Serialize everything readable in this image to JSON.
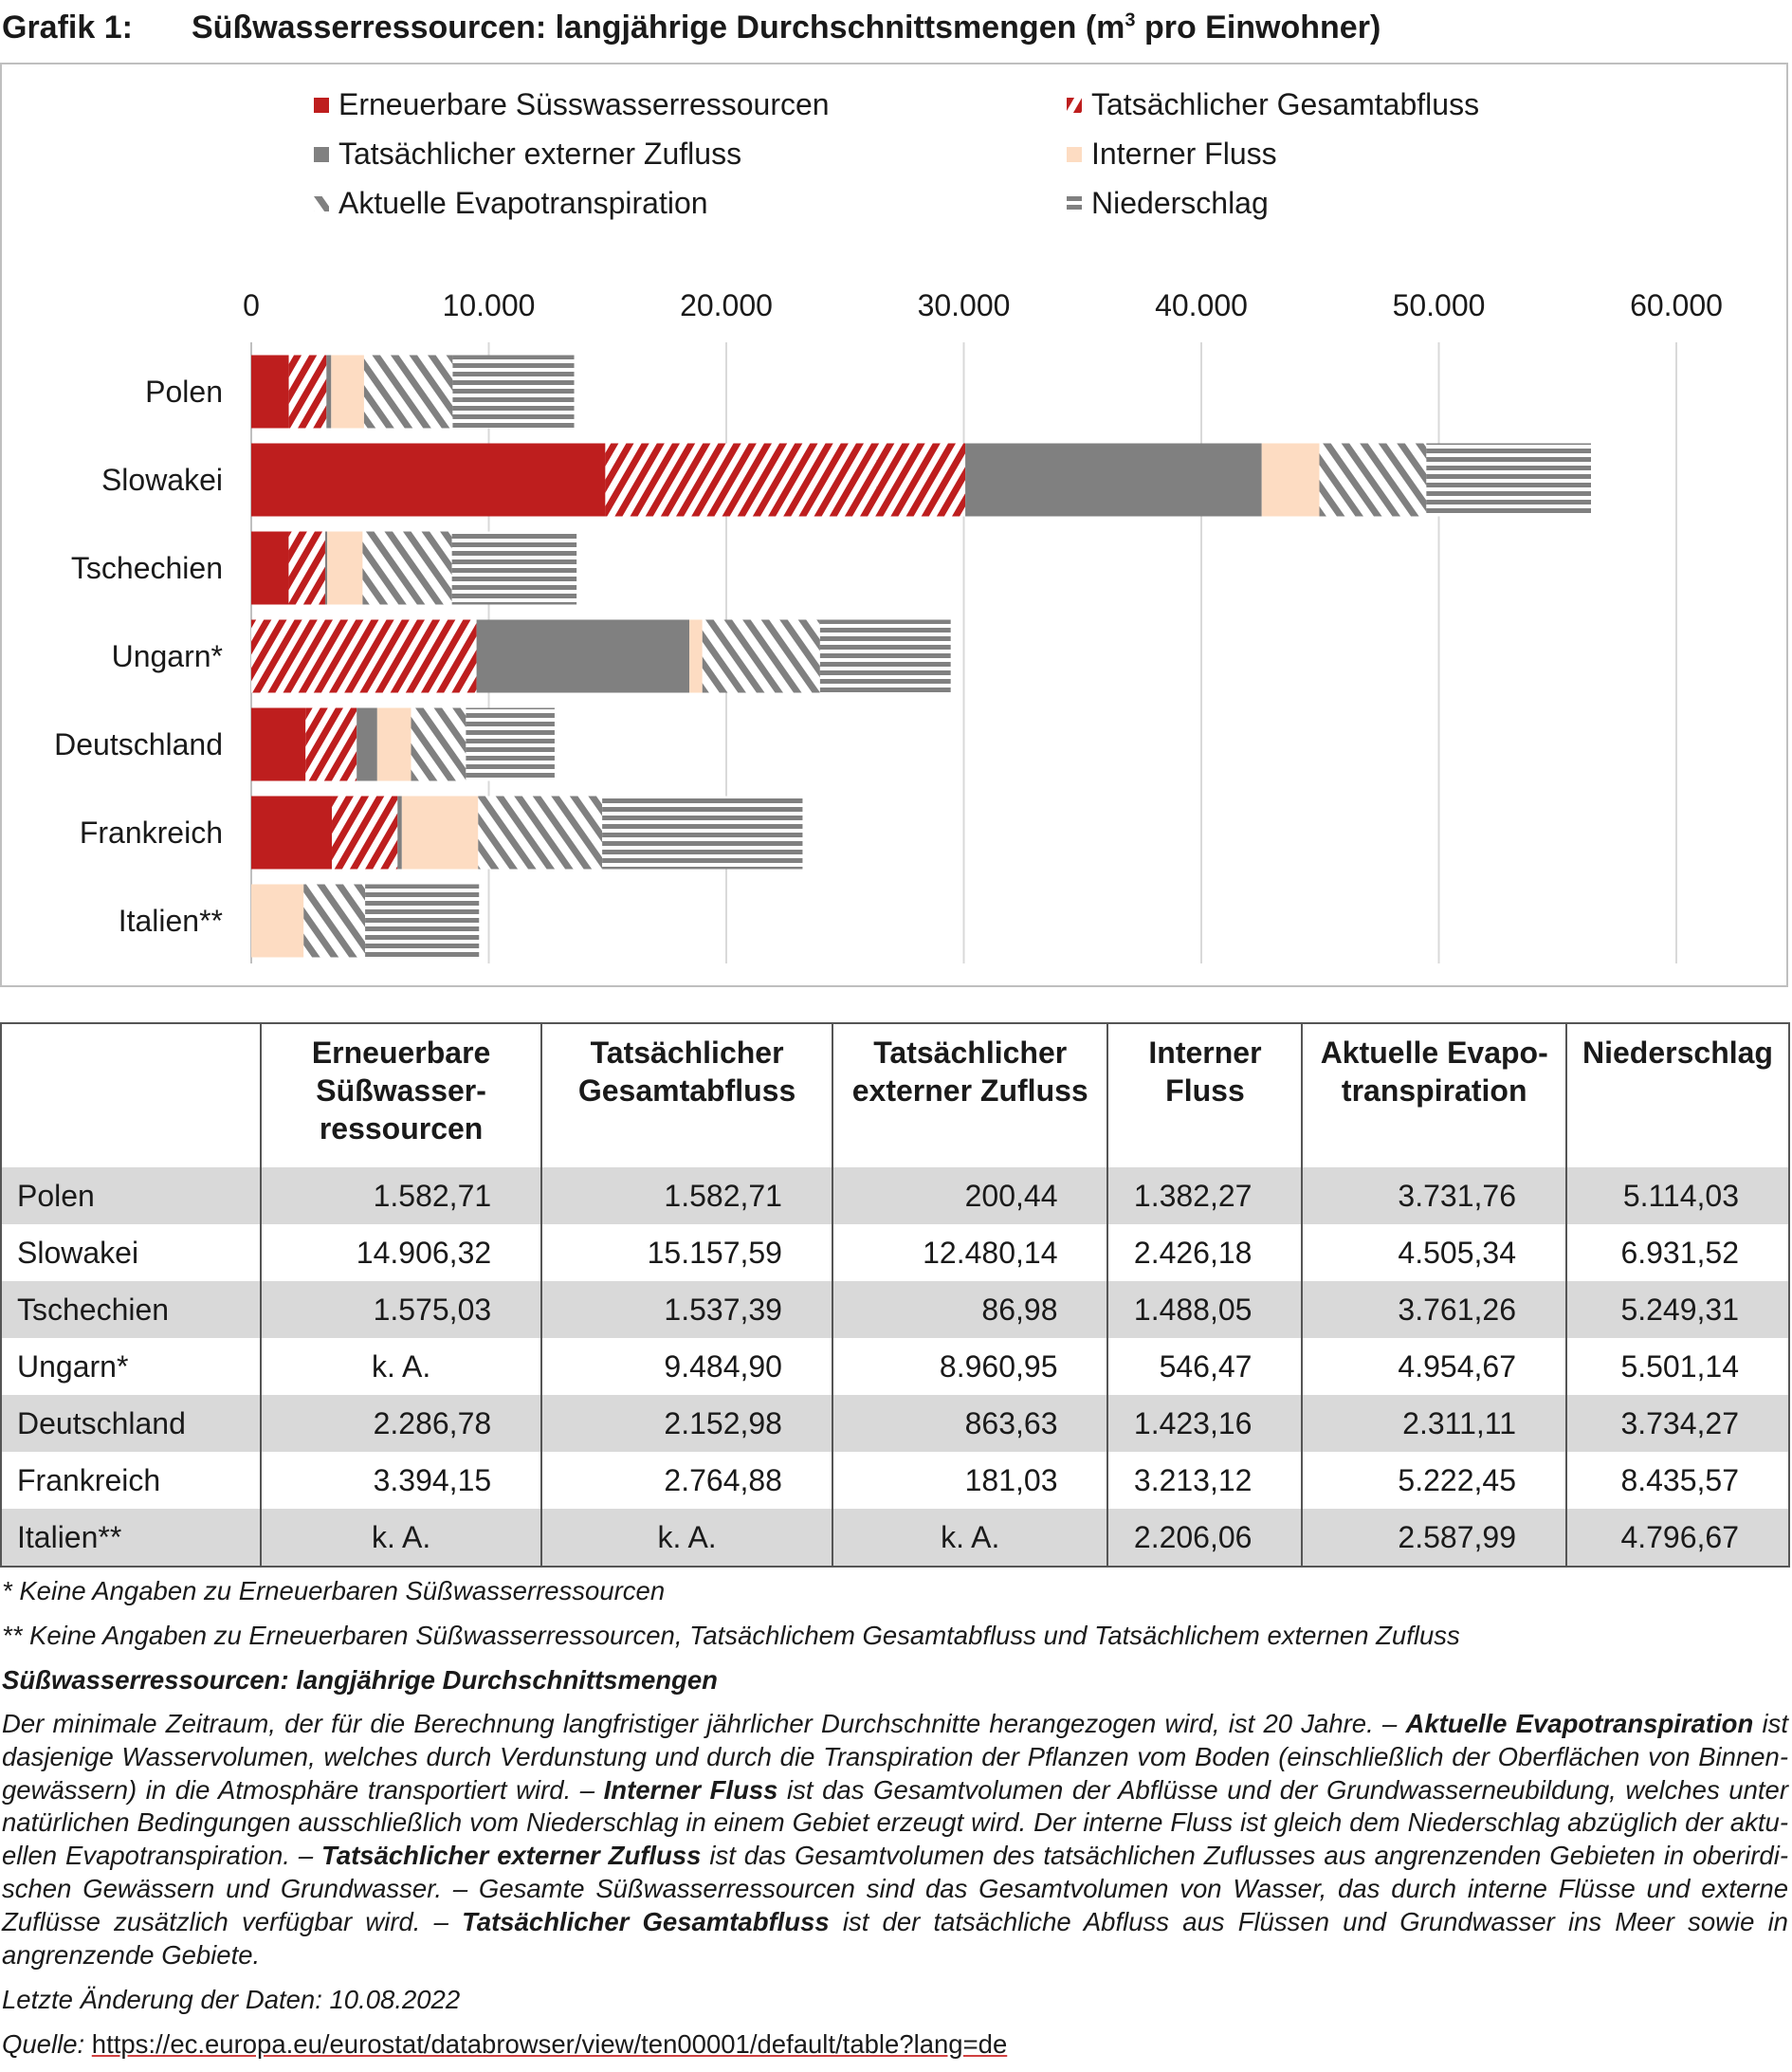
{
  "title": {
    "number": "Grafik 1:",
    "text": "Süßwasserressourcen: langjährige Durchschnittsmengen (m",
    "sup": "3",
    "text_end": " pro Einwohner)"
  },
  "colors": {
    "red": "#be1e1e",
    "gray": "#808080",
    "peach": "#fddcc2",
    "grid": "#d9d9d9"
  },
  "chart_data": {
    "type": "bar",
    "orientation": "horizontal-stacked",
    "categories": [
      "Polen",
      "Slowakei",
      "Tschechien",
      "Ungarn*",
      "Deutschland",
      "Frankreich",
      "Italien**"
    ],
    "xlim": [
      0,
      60000
    ],
    "xticks": [
      "0",
      "10.000",
      "20.000",
      "30.000",
      "40.000",
      "50.000",
      "60.000"
    ],
    "xtick_values": [
      0,
      10000,
      20000,
      30000,
      40000,
      50000,
      60000
    ],
    "grid": true,
    "legend_position": "top",
    "series": [
      {
        "name": "Erneuerbare  Süsswasserressourcen",
        "fill": "solid-red",
        "values": [
          1582.71,
          14906.32,
          1575.03,
          null,
          2286.78,
          3394.15,
          null
        ]
      },
      {
        "name": "Tatsächlicher Gesamtabfluss",
        "fill": "red-diagonal-hatch",
        "values": [
          1582.71,
          15157.59,
          1537.39,
          9484.9,
          2152.98,
          2764.88,
          null
        ]
      },
      {
        "name": "Tatsächlicher externer Zufluss",
        "fill": "solid-gray",
        "values": [
          200.44,
          12480.14,
          86.98,
          8960.95,
          863.63,
          181.03,
          null
        ]
      },
      {
        "name": "Interner Fluss",
        "fill": "solid-peach",
        "values": [
          1382.27,
          2426.18,
          1488.05,
          546.47,
          1423.16,
          3213.12,
          2206.06
        ]
      },
      {
        "name": "Aktuelle Evapotranspiration",
        "fill": "gray-back-diagonal-hatch",
        "values": [
          3731.76,
          4505.34,
          3761.26,
          4954.67,
          2311.11,
          5222.45,
          2587.99
        ]
      },
      {
        "name": "Niederschlag",
        "fill": "gray-horizontal-stripes",
        "values": [
          5114.03,
          6931.52,
          5249.31,
          5501.14,
          3734.27,
          8435.57,
          4796.67
        ]
      }
    ]
  },
  "table": {
    "headers": [
      "",
      "Erneuerbare Süßwasser-ressourcen",
      "Tatsächlicher Gesamtabfluss",
      "Tatsächlicher externer Zufluss",
      "Interner Fluss",
      "Aktuelle Evapo-transpiration",
      "Niederschlag"
    ],
    "rows": [
      [
        "Polen",
        "1.582,71",
        "1.582,71",
        "200,44",
        "1.382,27",
        "3.731,76",
        "5.114,03"
      ],
      [
        "Slowakei",
        "14.906,32",
        "15.157,59",
        "12.480,14",
        "2.426,18",
        "4.505,34",
        "6.931,52"
      ],
      [
        "Tschechien",
        "1.575,03",
        "1.537,39",
        "86,98",
        "1.488,05",
        "3.761,26",
        "5.249,31"
      ],
      [
        "Ungarn*",
        "k. A.",
        "9.484,90",
        "8.960,95",
        "546,47",
        "4.954,67",
        "5.501,14"
      ],
      [
        "Deutschland",
        "2.286,78",
        "2.152,98",
        "863,63",
        "1.423,16",
        "2.311,11",
        "3.734,27"
      ],
      [
        "Frankreich",
        "3.394,15",
        "2.764,88",
        "181,03",
        "3.213,12",
        "5.222,45",
        "8.435,57"
      ],
      [
        "Italien**",
        "k. A.",
        "k. A.",
        "k. A.",
        "2.206,06",
        "2.587,99",
        "4.796,67"
      ]
    ]
  },
  "notes": {
    "footnote1": "* Keine Angaben zu Erneuerbaren Süßwasserressourcen",
    "footnote2": "** Keine Angaben zu Erneuerbaren Süßwasserressourcen, Tatsächlichem Gesamtabfluss und Tatsächlichem externen Zufluss",
    "heading": "Süßwasserressourcen: langjährige Durchschnittsmengen",
    "para": [
      {
        "t": "Der minimale Zeitraum, der für die Berechnung langfristiger jährlicher Durchschnitte herangezogen wird, ist 20 Jahre. – ",
        "b": false
      },
      {
        "t": "Aktuelle Evapotranspiration",
        "b": true
      },
      {
        "t": " ist dasjenige Wasservolumen, welches durch Verdunstung und durch die Transpiration der Pflanzen vom Boden (einschließlich der Oberflächen von Binnen­gewässern) in die Atmosphäre transportiert wird. – ",
        "b": false
      },
      {
        "t": "Interner Fluss",
        "b": true
      },
      {
        "t": " ist das Gesamtvolumen der Abflüsse und der Grundwasserneubildung, welches unter natürlichen Bedingungen ausschließlich vom Niederschlag in einem Gebiet erzeugt wird. Der interne Fluss ist gleich dem Niederschlag abzüglich der aktu­ellen Evapotranspiration. – ",
        "b": false
      },
      {
        "t": "Tatsächlicher externer Zufluss",
        "b": true
      },
      {
        "t": " ist das Gesamtvolumen des tatsächlichen Zuflusses aus angrenzenden Gebieten in oberirdi­schen Gewässern und Grundwasser. – Gesamte Süßwasserressourcen sind das Gesamtvolumen von Wasser, das durch interne Flüsse und externe Zuflüsse zusätzlich verfügbar wird. – ",
        "b": false
      },
      {
        "t": "Tatsächlicher Gesamtabfluss",
        "b": true
      },
      {
        "t": " ist der tatsächliche Abfluss aus Flüssen und Grundwasser ins Meer sowie in angrenzende Gebiete.",
        "b": false
      }
    ],
    "last_change": "Letzte Änderung der Daten: 10.08.2022",
    "source_label": "Quelle: ",
    "source_url": "https://ec.europa.eu/eurostat/databrowser/view/ten00001/default/table?lang=de"
  }
}
